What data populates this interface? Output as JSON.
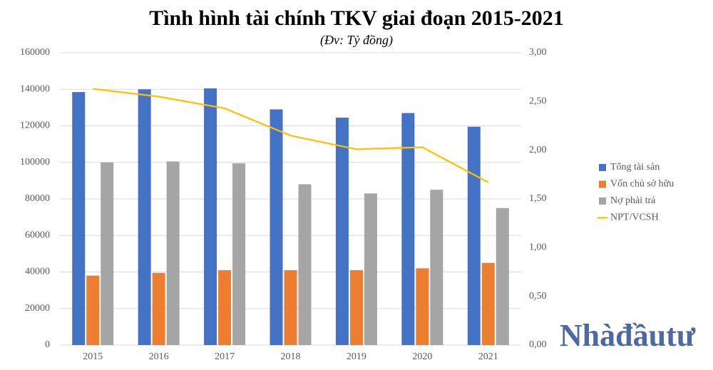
{
  "chart_data": {
    "type": "bar",
    "title": "Tình hình tài chính TKV giai đoạn 2015-2021",
    "subtitle": "(Đv: Tỷ đồng)",
    "categories": [
      "2015",
      "2016",
      "2017",
      "2018",
      "2019",
      "2020",
      "2021"
    ],
    "series": [
      {
        "name": "Tổng tài sản",
        "color": "#4472c4",
        "values": [
          138500,
          140000,
          140500,
          129000,
          124500,
          127000,
          119500
        ]
      },
      {
        "name": "Vốn chủ sở hữu",
        "color": "#ed7d31",
        "values": [
          38000,
          39500,
          41000,
          41000,
          41000,
          42000,
          45000
        ]
      },
      {
        "name": "Nợ phải trả",
        "color": "#a5a5a5",
        "values": [
          100000,
          100500,
          99500,
          88000,
          83000,
          85000,
          75000
        ]
      },
      {
        "name": "NPT/VCSH",
        "color": "#ffc000",
        "type": "line",
        "axis": "y2",
        "values": [
          2.63,
          2.55,
          2.43,
          2.15,
          2.01,
          2.03,
          1.67
        ]
      }
    ],
    "ylim": [
      0,
      160000
    ],
    "yticks": [
      0,
      20000,
      40000,
      60000,
      80000,
      100000,
      120000,
      140000,
      160000
    ],
    "y2lim": [
      0,
      3
    ],
    "y2ticks": [
      {
        "value": 0,
        "label": "0,00"
      },
      {
        "value": 0.5,
        "label": "0,50"
      },
      {
        "value": 1,
        "label": "1,00"
      },
      {
        "value": 1.5,
        "label": "1,50"
      },
      {
        "value": 2,
        "label": "2,00"
      },
      {
        "value": 2.5,
        "label": "2,50"
      },
      {
        "value": 3,
        "label": "3,00"
      }
    ],
    "grid": true,
    "legend": "right",
    "watermark": "Nhàđầutư"
  }
}
